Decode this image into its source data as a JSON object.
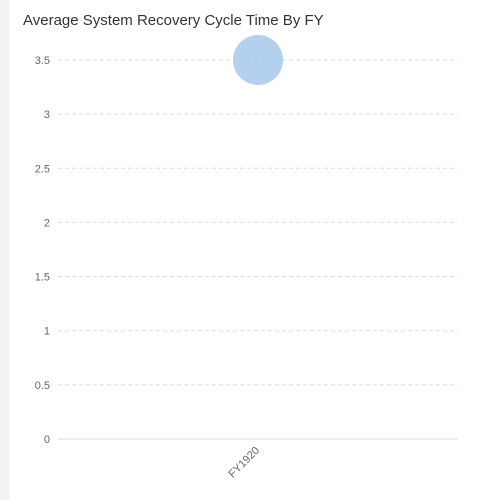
{
  "chart_data": {
    "type": "scatter",
    "title": "Average System Recovery Cycle Time By FY",
    "categories": [
      "FY1920"
    ],
    "values": [
      3.5
    ],
    "ylim": [
      0,
      3.5
    ],
    "yticks": [
      "0",
      "0.5",
      "1",
      "1.5",
      "2",
      "2.5",
      "3",
      "3.5"
    ],
    "grid": true,
    "xlabel": "",
    "ylabel": "",
    "colors": {
      "point": "#a6c8eb",
      "grid": "#dddddd",
      "axis": "#dddddd"
    }
  }
}
